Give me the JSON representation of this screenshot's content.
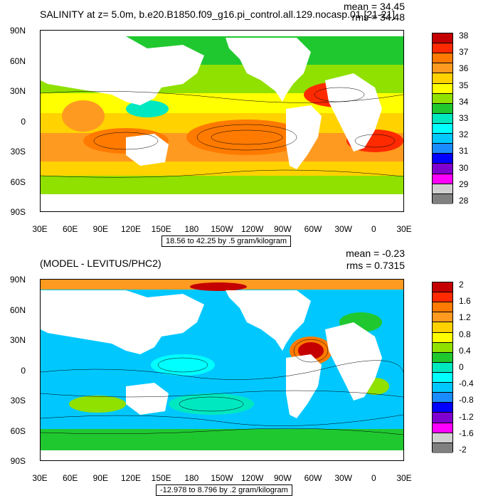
{
  "panel1": {
    "title": "SALINITY at z=   5.0m, b.e20.B1850.f09_g16.pi_control.all.129.nocasp.01 [21-21]",
    "mean": "mean = 34.45",
    "rms": "rms = 34.48",
    "info": "18.56 to 42.25 by .5 gram/kilogram",
    "colorbar": {
      "labels": [
        "38",
        "37",
        "36",
        "35",
        "34",
        "33",
        "32",
        "31",
        "30",
        "29",
        "28"
      ],
      "colors": [
        "#c40000",
        "#ff2a00",
        "#ff7a00",
        "#ff9a20",
        "#ffd200",
        "#ffff00",
        "#90e000",
        "#20c830",
        "#00e8c0",
        "#00ffff",
        "#00c8ff",
        "#1a8cff",
        "#0000ff",
        "#8000d0",
        "#ff00ff",
        "#d0d0d0",
        "#808080"
      ]
    }
  },
  "panel2": {
    "title": "(MODEL - LEVITUS/PHC2)",
    "mean": "mean = -0.23",
    "rms": "rms = 0.7315",
    "info": "-12.978 to 8.796 by .2 gram/kilogram",
    "colorbar": {
      "labels": [
        "2",
        "1.6",
        "1.2",
        "0.8",
        "0.4",
        "0",
        "-0.4",
        "-0.8",
        "-1.2",
        "-1.6",
        "-2"
      ],
      "colors": [
        "#c40000",
        "#ff2a00",
        "#ff7a00",
        "#ff9a20",
        "#ffd200",
        "#ffff00",
        "#90e000",
        "#20c830",
        "#00e8c0",
        "#00ffff",
        "#00c8ff",
        "#1a8cff",
        "#0000ff",
        "#8000d0",
        "#ff00ff",
        "#d0d0d0",
        "#808080"
      ]
    }
  },
  "axes": {
    "lat_labels": [
      "90N",
      "60N",
      "30N",
      "0",
      "30S",
      "60S",
      "90S"
    ],
    "lon_labels": [
      "30E",
      "60E",
      "90E",
      "120E",
      "150E",
      "180",
      "150W",
      "120W",
      "90W",
      "60W",
      "30W",
      "0",
      "30E"
    ]
  }
}
